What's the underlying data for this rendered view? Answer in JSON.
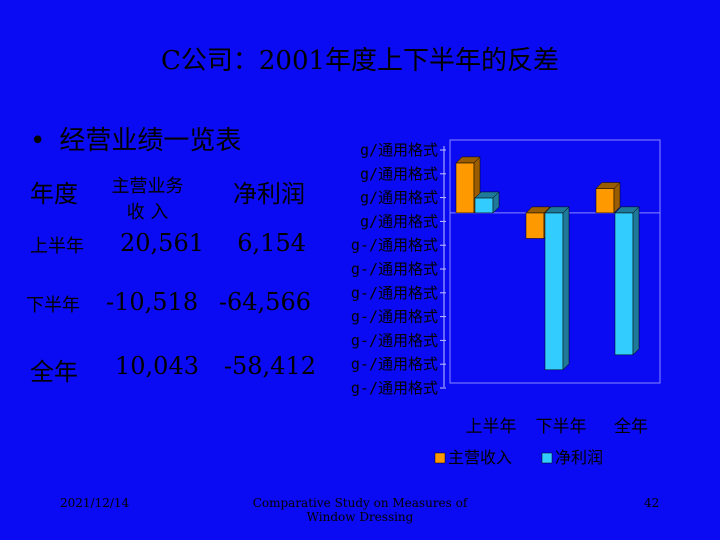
{
  "slide": {
    "title": "C公司：2001年度上下半年的反差",
    "bullet_symbol": "•",
    "bullet": "经营业绩一览表"
  },
  "table": {
    "header": {
      "period": "年度",
      "revenue_line1": "主营业务",
      "revenue_line2": "收 入",
      "profit": "净利润"
    },
    "rows": [
      {
        "period": "上半年",
        "revenue": "20,561",
        "profit": "6,154"
      },
      {
        "period": "下半年",
        "revenue": "-10,518",
        "profit": "-64,566"
      },
      {
        "period": "全年",
        "revenue": "10,043",
        "profit": "-58,412"
      }
    ]
  },
  "chart_data": {
    "type": "bar",
    "categories": [
      "上半年",
      "下半年",
      "全年"
    ],
    "series": [
      {
        "name": "主营收入",
        "values": [
          20561,
          -10518,
          10043
        ],
        "color": "#ff9900"
      },
      {
        "name": "净利润",
        "values": [
          6154,
          -64566,
          -58412
        ],
        "color": "#33ccff"
      }
    ],
    "ylim": [
      -70000,
      30000
    ],
    "y_tick_labels": [
      "g/通用格式",
      "g/通用格式",
      "g/通用格式",
      "g/通用格式",
      "g-/通用格式",
      "g-/通用格式",
      "g-/通用格式",
      "g-/通用格式",
      "g-/通用格式",
      "g-/通用格式",
      "g-/通用格式"
    ],
    "legend_position": "bottom",
    "grid": false
  },
  "footer": {
    "date": "2021/12/14",
    "center_line1": "Comparative Study on Measures of",
    "center_line2": "Window Dressing",
    "page": "42"
  }
}
